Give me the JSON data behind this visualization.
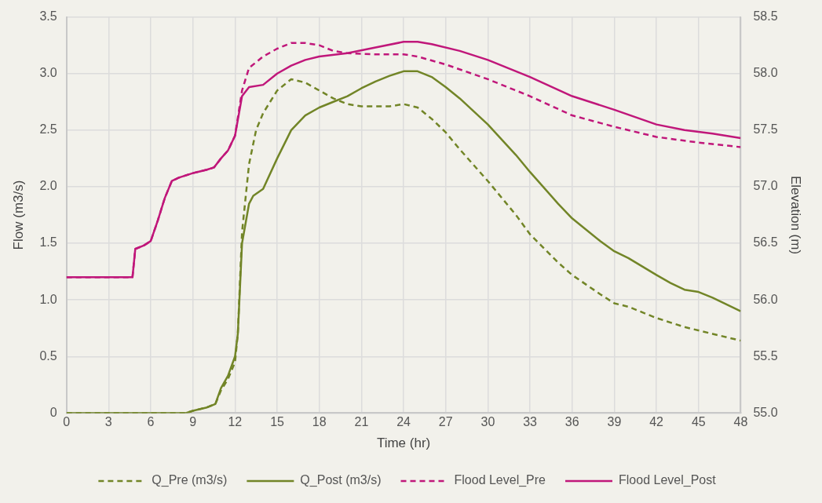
{
  "chart_data": {
    "type": "line",
    "xlabel": "Time (hr)",
    "ylabel": "Flow (m3/s)",
    "y2label": "Elevation (m)",
    "xlim": [
      0,
      48
    ],
    "xticks": [
      0,
      3,
      6,
      9,
      12,
      15,
      18,
      21,
      24,
      27,
      30,
      33,
      36,
      39,
      42,
      45,
      48
    ],
    "ylim": [
      0,
      3.5
    ],
    "yticks": [
      0,
      {
        "value": 0.5,
        "label": "0.5"
      },
      {
        "value": 1,
        "label": "1.0"
      },
      {
        "value": 1.5,
        "label": "1.5"
      },
      {
        "value": 2,
        "label": "2.0"
      },
      {
        "value": 2.5,
        "label": "2.5"
      },
      {
        "value": 3,
        "label": "3.0"
      },
      {
        "value": 3.5,
        "label": "3.5"
      }
    ],
    "y2lim": [
      55,
      58.5
    ],
    "y2ticks": [
      {
        "value": 55,
        "label": "55.0"
      },
      {
        "value": 55.5,
        "label": "55.5"
      },
      {
        "value": 56,
        "label": "56.0"
      },
      {
        "value": 56.5,
        "label": "56.5"
      },
      {
        "value": 57,
        "label": "57.0"
      },
      {
        "value": 57.5,
        "label": "57.5"
      },
      {
        "value": 58,
        "label": "58.0"
      },
      {
        "value": 58.5,
        "label": "58.5"
      }
    ],
    "grid": true,
    "legend": "bottom",
    "marker": "none",
    "series": [
      {
        "name": "Q_Pre (m3/s)",
        "color": "#728527",
        "line_style": "dashed",
        "x": [
          0,
          8.5,
          9,
          10,
          10.6,
          11,
          11.5,
          12,
          12.2,
          12.5,
          13,
          13.5,
          14,
          15,
          16,
          17,
          18,
          19,
          20,
          21,
          22,
          23,
          24,
          25,
          26,
          27,
          28,
          30,
          32,
          33,
          35,
          36,
          38,
          39,
          40,
          42,
          44,
          46,
          48
        ],
        "values": [
          0,
          0,
          0.02,
          0.05,
          0.08,
          0.2,
          0.3,
          0.45,
          0.7,
          1.6,
          2.2,
          2.5,
          2.65,
          2.85,
          2.95,
          2.92,
          2.85,
          2.78,
          2.73,
          2.71,
          2.71,
          2.71,
          2.73,
          2.7,
          2.6,
          2.48,
          2.33,
          2.05,
          1.75,
          1.58,
          1.33,
          1.22,
          1.05,
          0.97,
          0.94,
          0.84,
          0.76,
          0.7,
          0.64
        ]
      },
      {
        "name": "Q_Post (m3/s)",
        "color": "#728527",
        "line_style": "solid",
        "x": [
          0,
          8.5,
          9,
          10,
          10.6,
          11,
          11.5,
          12,
          12.2,
          12.5,
          13,
          13.3,
          14,
          15,
          16,
          17,
          18,
          19,
          20,
          21,
          22,
          23,
          24,
          25,
          26,
          27,
          28,
          30,
          32,
          33,
          35,
          36,
          38,
          39,
          40,
          42,
          43,
          44,
          45,
          46,
          48
        ],
        "values": [
          0,
          0,
          0.02,
          0.05,
          0.08,
          0.22,
          0.33,
          0.5,
          0.7,
          1.5,
          1.85,
          1.92,
          1.98,
          2.25,
          2.5,
          2.63,
          2.7,
          2.75,
          2.8,
          2.87,
          2.93,
          2.98,
          3.02,
          3.02,
          2.97,
          2.88,
          2.78,
          2.55,
          2.28,
          2.13,
          1.85,
          1.72,
          1.52,
          1.43,
          1.37,
          1.22,
          1.15,
          1.09,
          1.07,
          1.02,
          0.9
        ]
      },
      {
        "name": "Flood Level_Pre",
        "color": "#c0177a",
        "line_style": "dashed",
        "axis": "y2",
        "x": [
          0,
          4.7,
          4.9,
          5.5,
          6,
          6.5,
          7,
          7.5,
          8,
          9,
          10,
          10.5,
          11,
          11.5,
          12,
          12.5,
          13,
          14,
          15,
          16,
          17,
          18,
          19,
          20,
          22,
          24,
          25,
          27,
          30,
          33,
          36,
          39,
          42,
          45,
          48
        ],
        "values": [
          56.2,
          56.2,
          56.45,
          56.48,
          56.52,
          56.7,
          56.9,
          57.05,
          57.08,
          57.12,
          57.15,
          57.17,
          57.25,
          57.32,
          57.45,
          57.85,
          58.05,
          58.15,
          58.22,
          58.27,
          58.27,
          58.25,
          58.2,
          58.18,
          58.17,
          58.17,
          58.15,
          58.08,
          57.95,
          57.8,
          57.63,
          57.53,
          57.44,
          57.39,
          57.35
        ]
      },
      {
        "name": "Flood Level_Post",
        "color": "#c0177a",
        "line_style": "solid",
        "axis": "y2",
        "x": [
          0,
          4.7,
          4.9,
          5.5,
          6,
          6.5,
          7,
          7.5,
          8,
          9,
          10,
          10.5,
          11,
          11.5,
          12,
          12.5,
          13,
          14,
          15,
          16,
          17,
          18,
          20,
          22,
          24,
          25,
          26,
          28,
          30,
          33,
          36,
          39,
          42,
          44,
          46,
          48
        ],
        "values": [
          56.2,
          56.2,
          56.45,
          56.48,
          56.52,
          56.7,
          56.9,
          57.05,
          57.08,
          57.12,
          57.15,
          57.17,
          57.25,
          57.32,
          57.45,
          57.8,
          57.88,
          57.9,
          58,
          58.07,
          58.12,
          58.15,
          58.18,
          58.23,
          58.28,
          58.28,
          58.26,
          58.2,
          58.12,
          57.97,
          57.8,
          57.68,
          57.55,
          57.5,
          57.47,
          57.43
        ]
      }
    ]
  }
}
